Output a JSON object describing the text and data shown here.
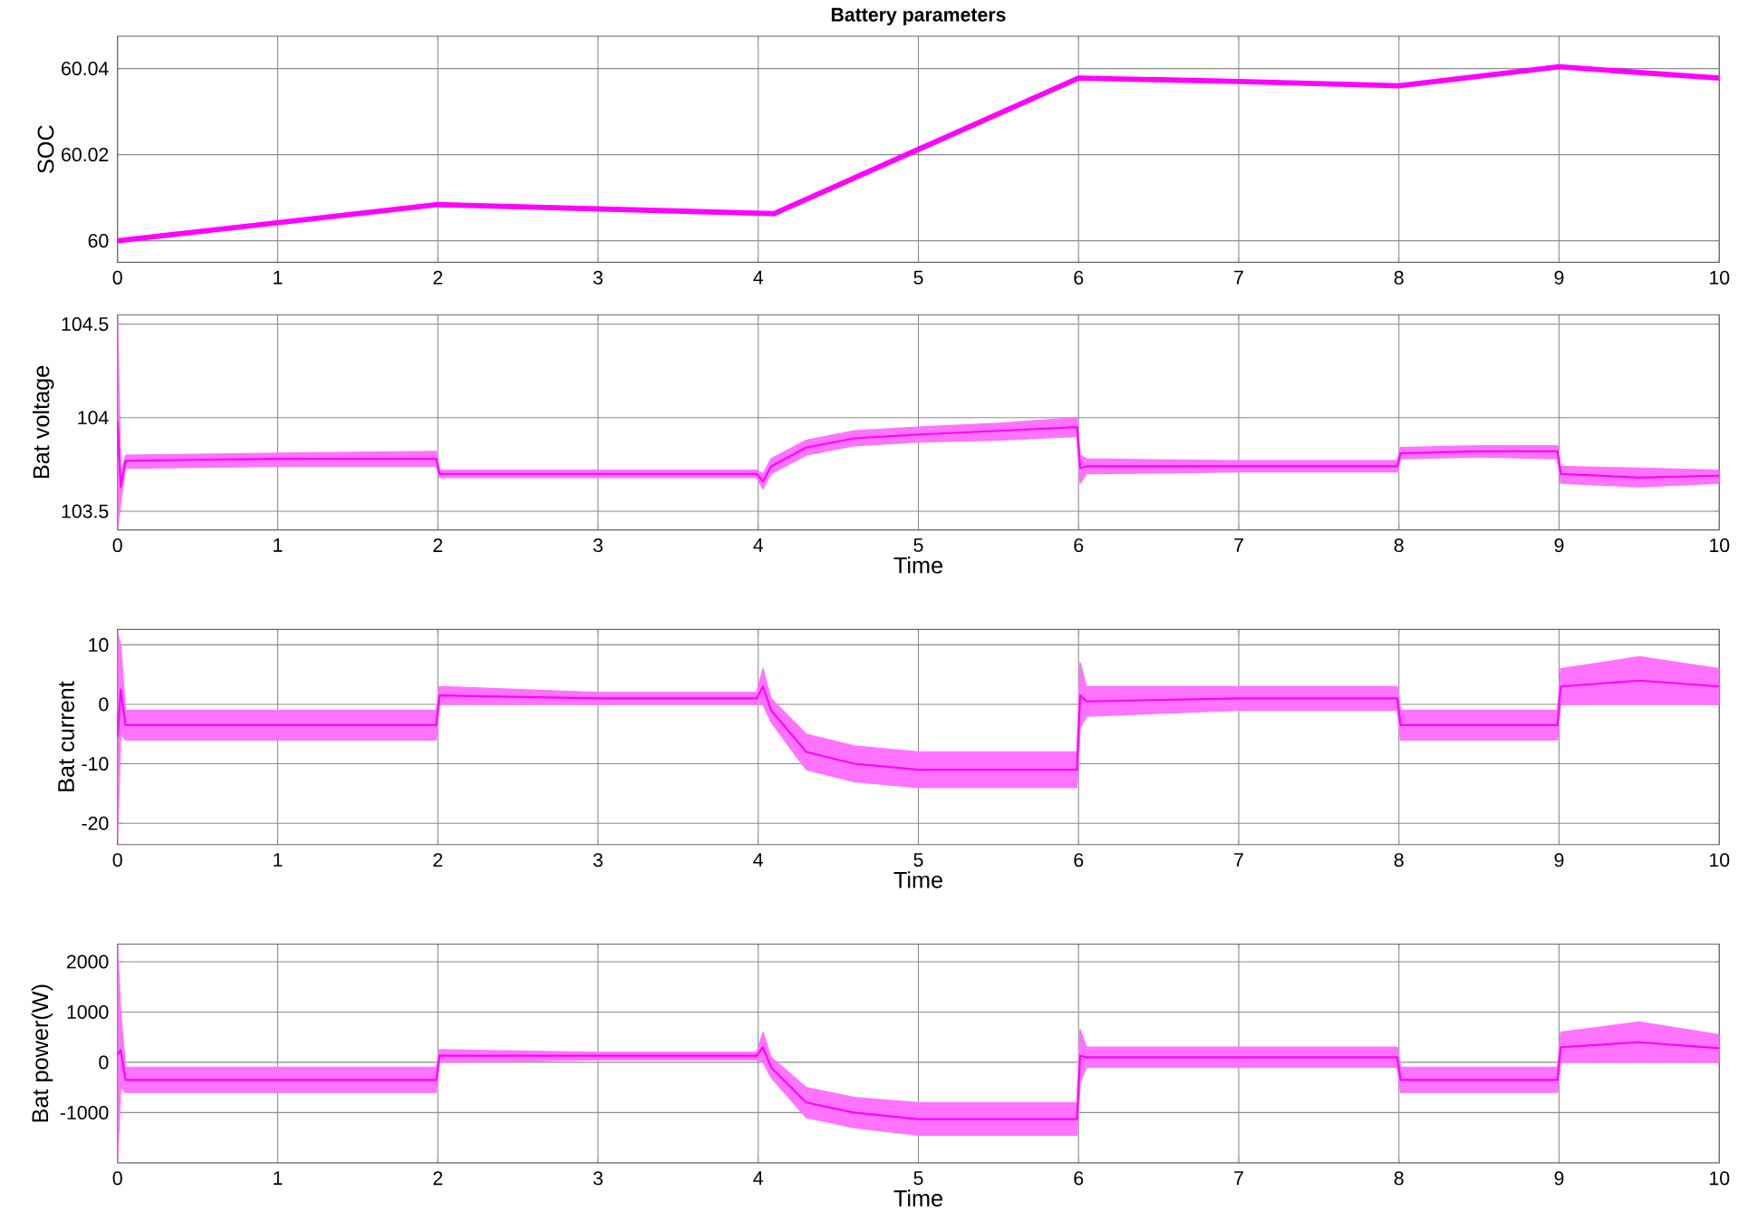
{
  "chart_data": [
    {
      "type": "line",
      "title": "Battery parameters",
      "ylabel": "SOC",
      "xlim": [
        0,
        10
      ],
      "xticks": [
        0,
        1,
        2,
        3,
        4,
        5,
        6,
        7,
        8,
        9,
        10
      ],
      "ylim": [
        59.995,
        60.0475
      ],
      "yticks": [
        60,
        60.02,
        60.04
      ],
      "grid": true,
      "x": [
        0,
        2,
        4.1,
        6,
        7,
        8,
        9,
        10
      ],
      "series": [
        {
          "color": "#ff00ff",
          "values": [
            60.0,
            60.0084,
            60.0063,
            60.0378,
            60.037,
            60.036,
            60.0404,
            60.0378
          ]
        }
      ]
    },
    {
      "type": "line",
      "xlabel": "Time",
      "ylabel": "Bat voltage",
      "xlim": [
        0,
        10
      ],
      "xticks": [
        0,
        1,
        2,
        3,
        4,
        5,
        6,
        7,
        8,
        9,
        10
      ],
      "ylim": [
        103.4,
        104.55
      ],
      "yticks": [
        103.5,
        104,
        104.5
      ],
      "grid": true,
      "x": [
        0,
        0.02,
        0.05,
        1,
        1.99,
        2.01,
        3,
        3.99,
        4.03,
        4.08,
        4.3,
        4.6,
        5,
        5.5,
        5.99,
        6.01,
        6.05,
        7,
        7.99,
        8.01,
        8.5,
        8.99,
        9.01,
        9.5,
        10
      ],
      "series": [
        {
          "color": "#ff00ff",
          "values": [
            103.98,
            103.63,
            103.77,
            103.78,
            103.78,
            103.7,
            103.7,
            103.7,
            103.66,
            103.74,
            103.84,
            103.89,
            103.91,
            103.93,
            103.95,
            103.73,
            103.74,
            103.74,
            103.74,
            103.81,
            103.82,
            103.82,
            103.7,
            103.68,
            103.69
          ],
          "lower": [
            103.4,
            103.55,
            103.73,
            103.74,
            103.74,
            103.68,
            103.68,
            103.68,
            103.62,
            103.7,
            103.8,
            103.85,
            103.87,
            103.88,
            103.9,
            103.65,
            103.7,
            103.71,
            103.71,
            103.78,
            103.79,
            103.78,
            103.65,
            103.63,
            103.65
          ],
          "upper": [
            104.55,
            103.7,
            103.8,
            103.81,
            103.82,
            103.72,
            103.72,
            103.72,
            103.7,
            103.78,
            103.88,
            103.93,
            103.95,
            103.97,
            104.0,
            103.8,
            103.78,
            103.77,
            103.77,
            103.84,
            103.85,
            103.85,
            103.74,
            103.73,
            103.72
          ]
        }
      ]
    },
    {
      "type": "line",
      "xlabel": "Time",
      "ylabel": "Bat current",
      "xlim": [
        0,
        10
      ],
      "xticks": [
        0,
        1,
        2,
        3,
        4,
        5,
        6,
        7,
        8,
        9,
        10
      ],
      "ylim": [
        -23.6,
        12.6
      ],
      "yticks": [
        -20,
        -10,
        0,
        10
      ],
      "grid": true,
      "x": [
        0,
        0.02,
        0.05,
        1,
        1.99,
        2.01,
        3,
        3.99,
        4.03,
        4.08,
        4.3,
        4.6,
        5,
        5.5,
        5.99,
        6.01,
        6.05,
        7,
        7.99,
        8.01,
        8.5,
        8.99,
        9.01,
        9.5,
        10
      ],
      "series": [
        {
          "color": "#ff00ff",
          "values": [
            -5.5,
            2.5,
            -3.5,
            -3.5,
            -3.5,
            1.5,
            1,
            1,
            3,
            -1,
            -8,
            -10,
            -11,
            -11,
            -11,
            1.5,
            0.5,
            1,
            1,
            -3.5,
            -3.5,
            -3.5,
            3,
            4,
            3
          ],
          "lower": [
            -23,
            -5,
            -6,
            -6,
            -6,
            0,
            0,
            0,
            0,
            -3,
            -11,
            -13,
            -14,
            -14,
            -14,
            -4,
            -2,
            -1,
            -1,
            -6,
            -6,
            -6,
            0,
            0,
            0
          ],
          "upper": [
            12,
            10,
            -1,
            -1,
            -1,
            3,
            2,
            2,
            6,
            1,
            -5,
            -7,
            -8,
            -8,
            -8,
            7,
            3,
            3,
            3,
            -1,
            -1,
            -1,
            6,
            8,
            6
          ]
        }
      ]
    },
    {
      "type": "line",
      "xlabel": "Time",
      "ylabel": "Bat power(W)",
      "xlim": [
        0,
        10
      ],
      "xticks": [
        0,
        1,
        2,
        3,
        4,
        5,
        6,
        7,
        8,
        9,
        10
      ],
      "ylim": [
        -2000,
        2350
      ],
      "yticks": [
        -1000,
        0,
        1000,
        2000
      ],
      "grid": true,
      "x": [
        0,
        0.02,
        0.05,
        1,
        1.99,
        2.01,
        3,
        3.99,
        4.03,
        4.08,
        4.3,
        4.6,
        5,
        5.5,
        5.99,
        6.01,
        6.05,
        7,
        7.99,
        8.01,
        8.5,
        8.99,
        9.01,
        9.5,
        10
      ],
      "series": [
        {
          "color": "#ff00ff",
          "values": [
            150,
            250,
            -350,
            -350,
            -350,
            130,
            130,
            130,
            300,
            -100,
            -800,
            -1000,
            -1130,
            -1130,
            -1130,
            130,
            100,
            100,
            100,
            -350,
            -350,
            -350,
            300,
            400,
            280
          ],
          "lower": [
            -2000,
            -500,
            -600,
            -600,
            -600,
            0,
            50,
            50,
            0,
            -300,
            -1100,
            -1300,
            -1450,
            -1450,
            -1450,
            -400,
            -100,
            -100,
            -100,
            -600,
            -600,
            -600,
            0,
            0,
            0
          ],
          "upper": [
            2300,
            1000,
            -100,
            -100,
            -100,
            250,
            200,
            200,
            600,
            100,
            -500,
            -700,
            -800,
            -800,
            -800,
            650,
            300,
            300,
            300,
            -100,
            -100,
            -100,
            600,
            800,
            550
          ]
        }
      ]
    }
  ]
}
